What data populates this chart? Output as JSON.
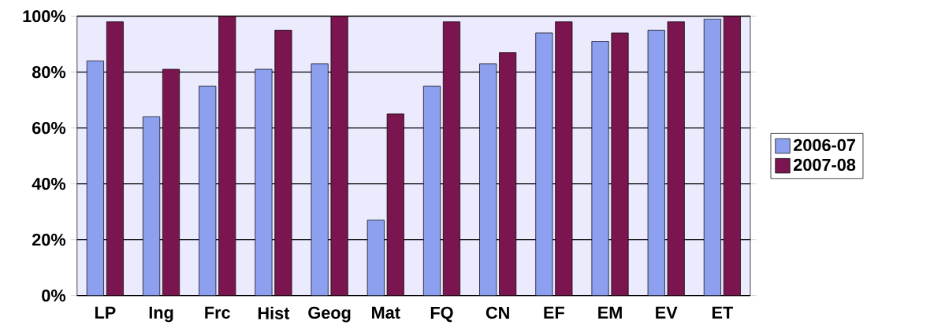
{
  "chart_data": {
    "type": "bar",
    "categories": [
      "LP",
      "Ing",
      "Frc",
      "Hist",
      "Geog",
      "Mat",
      "FQ",
      "CN",
      "EF",
      "EM",
      "EV",
      "ET"
    ],
    "series": [
      {
        "name": "2006-07",
        "color": "#8da0f0",
        "values": [
          84,
          64,
          75,
          81,
          83,
          27,
          75,
          83,
          94,
          91,
          95,
          99
        ]
      },
      {
        "name": "2007-08",
        "color": "#7b1550",
        "values": [
          98,
          81,
          100,
          95,
          100,
          65,
          98,
          87,
          98,
          94,
          98,
          100
        ]
      }
    ],
    "ylim": [
      0,
      100
    ],
    "yticks": [
      {
        "value": 0,
        "label": "0%"
      },
      {
        "value": 20,
        "label": "20%"
      },
      {
        "value": 40,
        "label": "40%"
      },
      {
        "value": 60,
        "label": "60%"
      },
      {
        "value": 80,
        "label": "80%"
      },
      {
        "value": 100,
        "label": "100%"
      }
    ],
    "grid": "y",
    "legend": "right"
  }
}
